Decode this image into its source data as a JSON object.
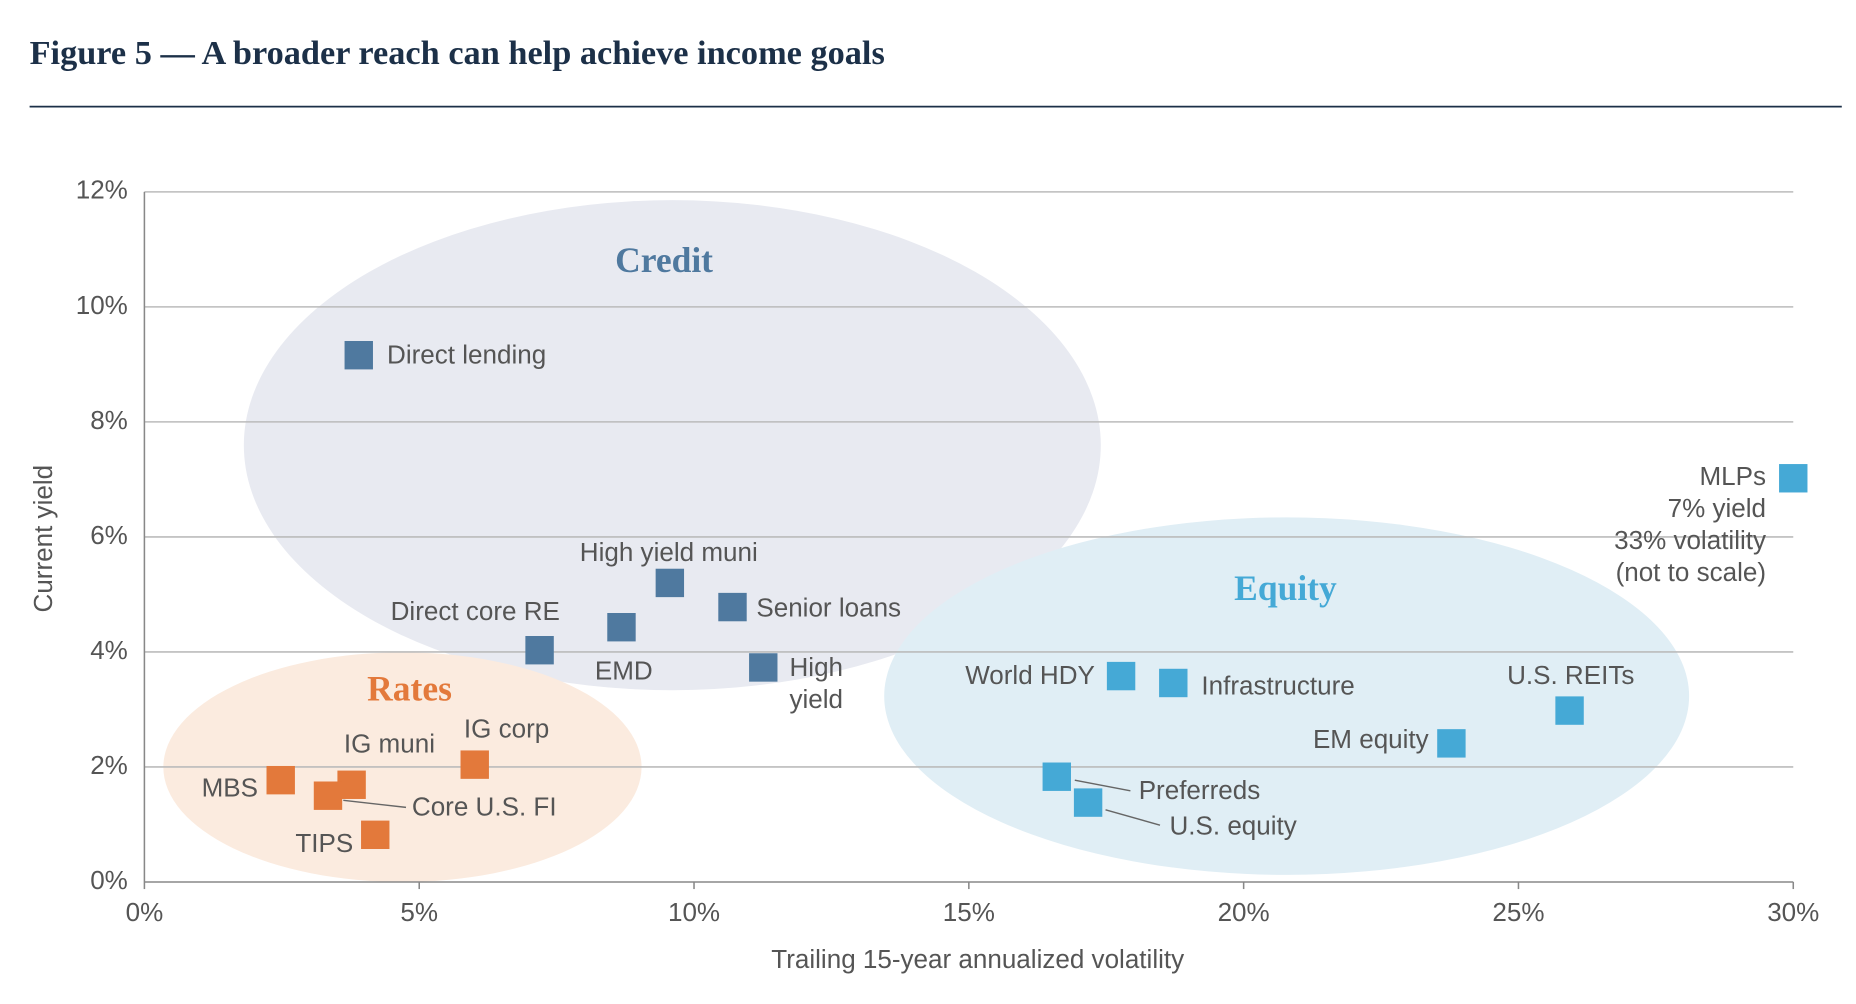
{
  "chart_data": {
    "type": "scatter",
    "title": "Figure 5 — A broader reach can help achieve income goals",
    "x_label": "Trailing 15-year annualized volatility",
    "y_label": "Current yield",
    "xlim": [
      0,
      30
    ],
    "ylim": [
      0,
      12
    ],
    "xticks": [
      {
        "value": 0,
        "label": "0%"
      },
      {
        "value": 5,
        "label": "5%"
      },
      {
        "value": 10,
        "label": "10%"
      },
      {
        "value": 15,
        "label": "15%"
      },
      {
        "value": 20,
        "label": "20%"
      },
      {
        "value": 25,
        "label": "25%"
      },
      {
        "value": 30,
        "label": "30%"
      }
    ],
    "yticks": [
      {
        "value": 0,
        "label": "0%"
      },
      {
        "value": 2,
        "label": "2%"
      },
      {
        "value": 4,
        "label": "4%"
      },
      {
        "value": 6,
        "label": "6%"
      },
      {
        "value": 8,
        "label": "8%"
      },
      {
        "value": 10,
        "label": "10%"
      },
      {
        "value": 12,
        "label": "12%"
      }
    ],
    "grid": true,
    "series": [
      {
        "name": "Credit",
        "color": "#4f799f",
        "labels": [
          "Direct lending",
          "High yield muni",
          "Senior loans",
          "EMD",
          "Direct core RE",
          "High yield"
        ],
        "x": [
          3.9,
          9.56,
          10.7,
          8.68,
          7.19,
          11.26
        ],
        "y": [
          9.16,
          5.2,
          4.78,
          4.43,
          4.03,
          3.73
        ]
      },
      {
        "name": "Rates",
        "color": "#e3793b",
        "labels": [
          "MBS",
          "IG muni",
          "IG corp",
          "Core U.S. FI",
          "TIPS"
        ],
        "x": [
          2.48,
          3.77,
          6.01,
          3.34,
          4.2
        ],
        "y": [
          1.77,
          1.69,
          2.04,
          1.5,
          0.82
        ]
      },
      {
        "name": "Equity",
        "color": "#45a9d6",
        "labels": [
          "World HDY",
          "Infrastructure",
          "U.S. REITs",
          "EM equity",
          "Preferreds",
          "U.S. equity",
          "MLPs"
        ],
        "x": [
          17.77,
          18.72,
          25.93,
          23.78,
          16.6,
          17.17,
          30
        ],
        "y": [
          3.58,
          3.46,
          2.98,
          2.41,
          1.83,
          1.38,
          7.02
        ]
      }
    ],
    "annotations": [
      "7% yield",
      "33% volatility",
      "(not to scale)"
    ]
  }
}
